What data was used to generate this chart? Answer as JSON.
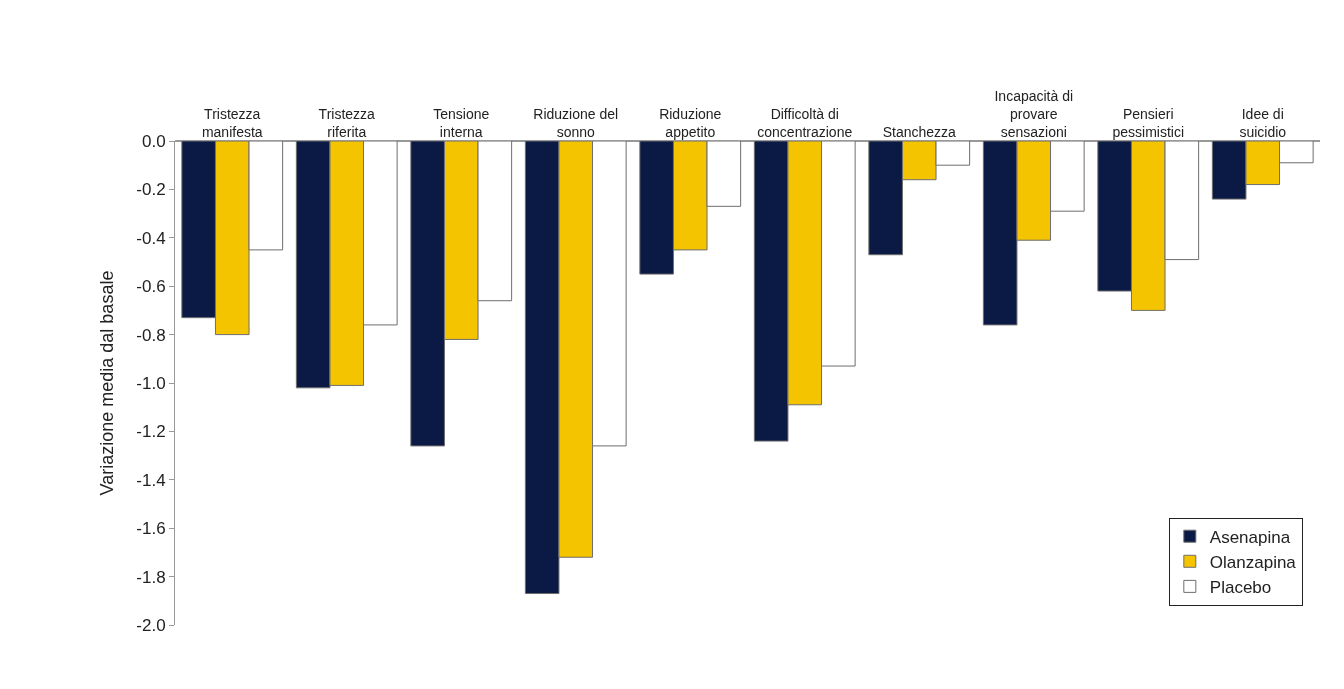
{
  "chart_data": {
    "type": "bar",
    "ylabel": "Variazione media dal basale",
    "categories": [
      "Tristezza manifesta",
      "Tristezza riferita",
      "Tensione interna",
      "Riduzione del sonno",
      "Riduzione appetito",
      "Difficoltà di concentrazione",
      "Stanchezza",
      "Incapacità di provare sensazioni",
      "Pensieri pessimistici",
      "Idee di suicidio"
    ],
    "series": [
      {
        "name": "Asenapina",
        "color": "#0a1a45",
        "values": [
          -0.73,
          -1.02,
          -1.26,
          -1.87,
          -0.55,
          -1.24,
          -0.47,
          -0.76,
          -0.62,
          -0.24
        ]
      },
      {
        "name": "Olanzapina",
        "color": "#f5c400",
        "values": [
          -0.8,
          -1.01,
          -0.82,
          -1.72,
          -0.45,
          -1.09,
          -0.16,
          -0.41,
          -0.7,
          -0.18
        ]
      },
      {
        "name": "Placebo",
        "color": "#ffffff",
        "values": [
          -0.45,
          -0.76,
          -0.66,
          -1.26,
          -0.27,
          -0.93,
          -0.1,
          -0.29,
          -0.49,
          -0.09
        ]
      }
    ],
    "ylim": [
      -2.0,
      0
    ],
    "yticks": [
      {
        "value": 0,
        "label": "0.0"
      },
      -0.2,
      -0.4,
      -0.6,
      -0.8,
      {
        "value": -1,
        "label": "-1.0"
      },
      -1.2,
      -1.4,
      -1.6,
      -1.8,
      {
        "value": -2,
        "label": "-2.0"
      }
    ],
    "grid": false,
    "legend": "bottom right"
  }
}
